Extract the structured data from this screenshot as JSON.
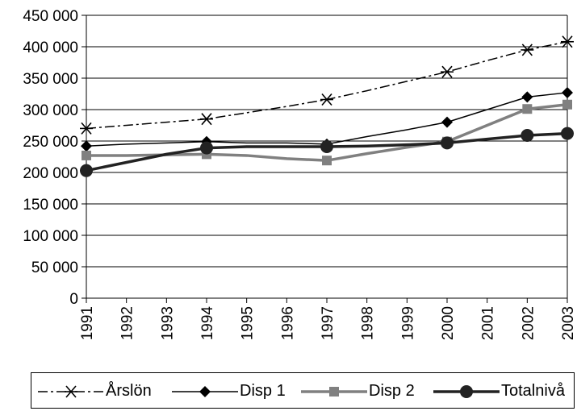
{
  "chart_data": {
    "type": "line",
    "x": [
      1991,
      1992,
      1993,
      1994,
      1995,
      1996,
      1997,
      1998,
      1999,
      2000,
      2001,
      2002,
      2003
    ],
    "y_ticks": [
      "0",
      "50 000",
      "100 000",
      "150 000",
      "200 000",
      "250 000",
      "300 000",
      "350 000",
      "400 000",
      "450 000"
    ],
    "ylim": [
      0,
      450000
    ],
    "grid": "horizontal",
    "legend_position": "bottom",
    "series": [
      {
        "name": "Årslön",
        "color": "#000000",
        "style": "dash-dot",
        "marker": "star",
        "values": [
          270000,
          null,
          null,
          285000,
          null,
          null,
          316000,
          null,
          null,
          360000,
          null,
          395000,
          408000
        ],
        "line_values": [
          270000,
          275000,
          280000,
          285000,
          295000,
          305000,
          316000,
          330000,
          345000,
          360000,
          378000,
          395000,
          408000
        ]
      },
      {
        "name": "Disp 1",
        "color": "#000000",
        "style": "solid-thin",
        "marker": "diamond",
        "values": [
          242000,
          null,
          null,
          249000,
          null,
          null,
          245000,
          null,
          null,
          280000,
          null,
          320000,
          327000
        ],
        "line_values": [
          242000,
          245000,
          247000,
          249000,
          247000,
          247000,
          245000,
          257000,
          268000,
          280000,
          300000,
          320000,
          327000
        ]
      },
      {
        "name": "Disp 2",
        "color": "#808080",
        "style": "solid-thick",
        "marker": "square",
        "values": [
          227000,
          null,
          null,
          229000,
          null,
          null,
          219000,
          null,
          null,
          249000,
          null,
          301000,
          308000
        ],
        "line_values": [
          227000,
          227000,
          228000,
          229000,
          227000,
          222000,
          219000,
          230000,
          240000,
          249000,
          275000,
          301000,
          308000
        ]
      },
      {
        "name": "Totalnivå",
        "color": "#222222",
        "style": "solid-bold",
        "marker": "circle",
        "values": [
          203000,
          null,
          null,
          239000,
          null,
          null,
          241000,
          null,
          null,
          247000,
          null,
          259000,
          262000
        ],
        "line_values": [
          203000,
          216000,
          229000,
          239000,
          241000,
          241000,
          241000,
          242000,
          244000,
          247000,
          253000,
          259000,
          262000
        ]
      }
    ]
  }
}
